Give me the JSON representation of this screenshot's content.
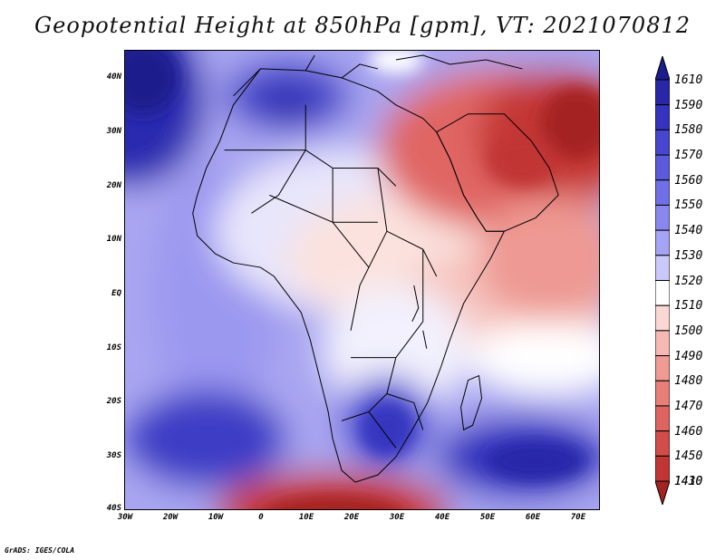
{
  "title": "Geopotential Height at 850hPa [gpm], VT: 2021070812",
  "credit": "GrADS: IGES/COLA",
  "lat_labels": [
    "40N",
    "30N",
    "20N",
    "10N",
    "EQ",
    "10S",
    "20S",
    "30S",
    "40S"
  ],
  "lon_labels": [
    "30W",
    "20W",
    "10W",
    "0",
    "10E",
    "20E",
    "30E",
    "40E",
    "50E",
    "60E",
    "70E"
  ],
  "colorbar": {
    "levels": [
      "1610",
      "1590",
      "1580",
      "1570",
      "1560",
      "1550",
      "1540",
      "1530",
      "1520",
      "1510",
      "1500",
      "1490",
      "1480",
      "1470",
      "1460",
      "1450",
      "1430",
      "1410"
    ],
    "colors": [
      "#1c1c8c",
      "#2727a8",
      "#3434bf",
      "#4646cf",
      "#5a5adc",
      "#7070e6",
      "#8787ee",
      "#a5a3f4",
      "#cac8fa",
      "#ffffff",
      "#fbd7d3",
      "#f6b8b2",
      "#ef9a93",
      "#e77e78",
      "#de6460",
      "#d24c4a",
      "#c13634",
      "#a42220"
    ]
  },
  "map": {
    "background_color": "#a9a6f1",
    "coastline_color": "#000000"
  }
}
